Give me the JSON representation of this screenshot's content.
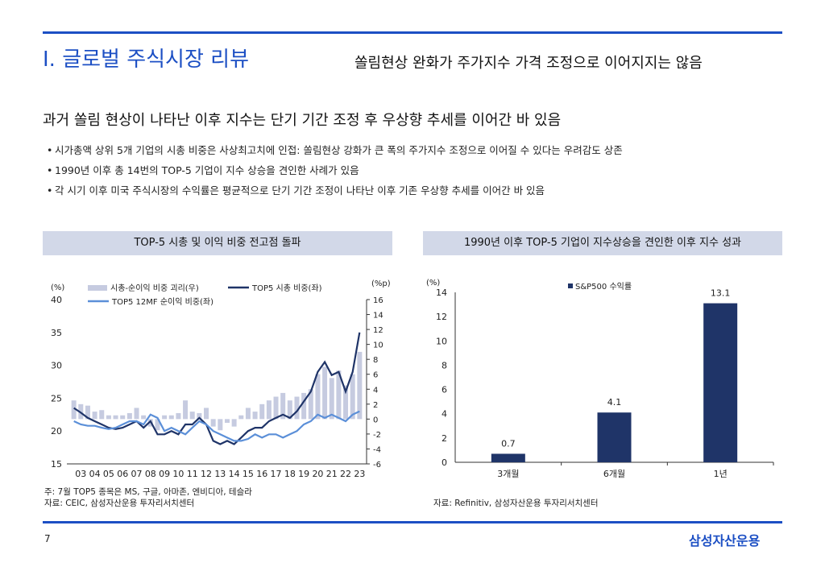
{
  "header": {
    "title": "I. 글로벌 주식시장 리뷰",
    "subtitle": "쏠림현상 완화가 주가지수 가격 조정으로 이어지지는 않음"
  },
  "headline": "과거 쏠림 현상이 나타난 이후 지수는 단기 기간 조정 후 우상향 추세를 이어간 바 있음",
  "bullets": [
    "시가총액 상위 5개 기업의 시총 비중은 사상최고치에 인접: 쏠림현상 강화가 큰 폭의 주가지수 조정으로 이어질 수 있다는 우려감도 상존",
    "1990년 이후 총 14번의 TOP-5 기업이 지수 상승을 견인한 사례가 있음",
    "각 시기 이후 미국 주식시장의 수익률은 평균적으로 단기 기간 조정이 나타난 이후 기존 우상향 추세를 이어간 바 있음"
  ],
  "bullet_marker": "•",
  "left_panel": {
    "header": "TOP-5 시총 및 이익 비중 전고점 돌파",
    "note1": "주: 7월 TOP5 종목은 MS, 구글, 아마존, 엔비디아, 테슬라",
    "note2": "자료: CEIC, 삼성자산운용 투자리서치센터"
  },
  "right_panel": {
    "header": "1990년 이후 TOP-5 기업이 지수상승을 견인한 이후 지수 성과",
    "note": "자료: Refinitiv, 삼성자산운용 투자리서치센터"
  },
  "footer": {
    "page": "7",
    "brand": "삼성자산운용"
  },
  "colors": {
    "accent": "#1c4fc4",
    "panel_header_bg": "#d2d8e8",
    "navy": "#1f3468",
    "light_blue": "#5b8fd8",
    "gap_bar": "#c6cbe0"
  },
  "chart_data": [
    {
      "type": "line",
      "title": "TOP-5 시총 및 이익 비중 전고점 돌파",
      "left_axis_unit": "(%)",
      "right_axis_unit": "(%p)",
      "ylim": [
        15,
        40
      ],
      "y_ticks": [
        15,
        20,
        25,
        30,
        35,
        40
      ],
      "y2lim": [
        -6,
        16
      ],
      "y2_ticks": [
        -6,
        -4,
        -2,
        0,
        2,
        4,
        6,
        8,
        10,
        12,
        14,
        16
      ],
      "x_ticks": [
        "03",
        "04",
        "05",
        "06",
        "07",
        "08",
        "09",
        "10",
        "11",
        "12",
        "13",
        "14",
        "15",
        "16",
        "17",
        "18",
        "19",
        "20",
        "21",
        "22",
        "23"
      ],
      "x": [
        2003.0,
        2003.5,
        2004.0,
        2004.5,
        2005.0,
        2005.5,
        2006.0,
        2006.5,
        2007.0,
        2007.5,
        2008.0,
        2008.5,
        2009.0,
        2009.5,
        2010.0,
        2010.5,
        2011.0,
        2011.5,
        2012.0,
        2012.5,
        2013.0,
        2013.5,
        2014.0,
        2014.5,
        2015.0,
        2015.5,
        2016.0,
        2016.5,
        2017.0,
        2017.5,
        2018.0,
        2018.5,
        2019.0,
        2019.5,
        2020.0,
        2020.5,
        2021.0,
        2021.5,
        2022.0,
        2022.5,
        2023.0,
        2023.5
      ],
      "series": [
        {
          "name": "시총-순이익 비중 괴리(우)",
          "kind": "bar",
          "axis": "right",
          "values": [
            2.5,
            2.0,
            1.8,
            1.0,
            1.2,
            0.5,
            0.5,
            0.5,
            0.8,
            1.5,
            0.5,
            -1.0,
            -1.5,
            0.5,
            0.5,
            0.8,
            2.5,
            1.0,
            0.8,
            1.5,
            -1.0,
            -1.5,
            -0.5,
            -1.0,
            0.5,
            1.5,
            1.0,
            2.0,
            2.5,
            3.0,
            3.5,
            2.5,
            3.0,
            3.5,
            4.0,
            6.0,
            7.0,
            5.5,
            6.5,
            4.5,
            6.0,
            9.0
          ]
        },
        {
          "name": "TOP5 시총 비중(좌)",
          "kind": "line",
          "axis": "left",
          "values": [
            23.5,
            22.8,
            22.0,
            21.5,
            21.0,
            20.5,
            20.3,
            20.5,
            21.0,
            21.5,
            20.5,
            21.5,
            19.5,
            19.5,
            20.0,
            19.5,
            21.0,
            21.0,
            22.0,
            21.0,
            18.5,
            18.0,
            18.5,
            18.0,
            19.0,
            20.0,
            20.5,
            20.5,
            21.5,
            22.0,
            22.5,
            22.0,
            23.0,
            24.5,
            26.0,
            29.0,
            30.5,
            28.5,
            29.0,
            26.0,
            29.0,
            35.0
          ]
        },
        {
          "name": "TOP5 12MF 순이익 비중(좌)",
          "kind": "line",
          "axis": "left",
          "values": [
            21.5,
            21.0,
            20.8,
            20.8,
            20.5,
            20.3,
            20.5,
            21.0,
            21.5,
            21.5,
            21.0,
            22.5,
            22.0,
            20.0,
            20.5,
            20.0,
            19.5,
            20.5,
            21.5,
            21.0,
            20.0,
            19.5,
            19.0,
            18.5,
            18.5,
            18.8,
            19.5,
            19.0,
            19.5,
            19.5,
            19.0,
            19.5,
            20.0,
            21.0,
            21.5,
            22.5,
            22.0,
            22.5,
            22.0,
            21.5,
            22.5,
            23.0
          ]
        }
      ]
    },
    {
      "type": "bar",
      "title": "1990년 이후 TOP-5 기업이 지수상승을 견인한 이후 지수 성과",
      "ylabel": "(%)",
      "legend": "S&P500 수익률",
      "categories": [
        "3개월",
        "6개월",
        "1년"
      ],
      "values": [
        0.7,
        4.1,
        13.1
      ],
      "ylim": [
        0,
        14
      ],
      "y_ticks": [
        0,
        2,
        4,
        6,
        8,
        10,
        12,
        14
      ]
    }
  ]
}
